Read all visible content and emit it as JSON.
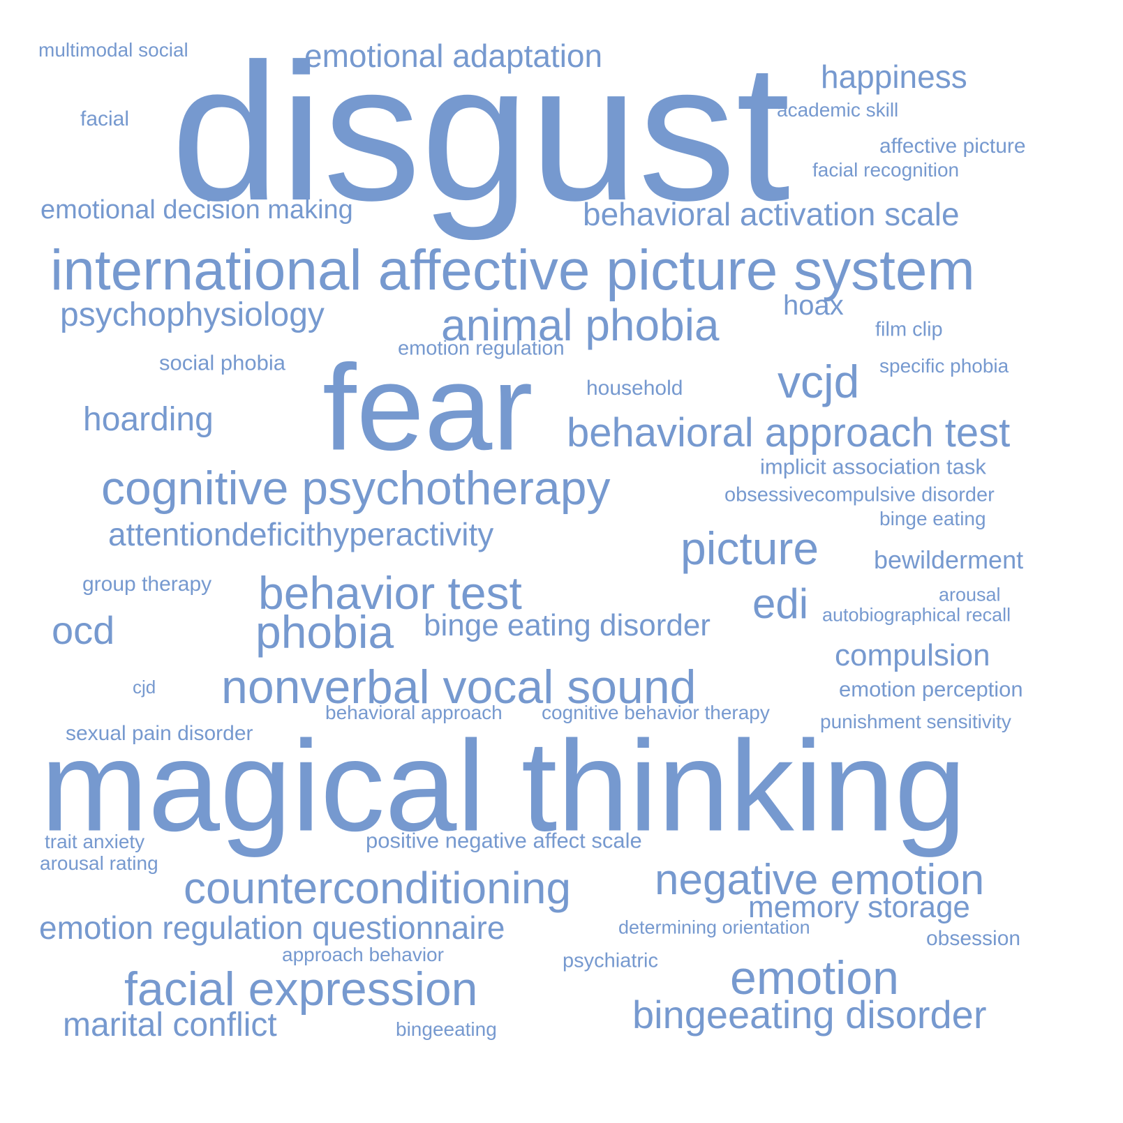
{
  "style": {
    "word_color": "#7699cf",
    "background": "#ffffff"
  },
  "words": [
    {
      "text": "disgust",
      "weight": 100
    },
    {
      "text": "magical thinking",
      "weight": 78
    },
    {
      "text": "fear",
      "weight": 82
    },
    {
      "text": "international affective picture system",
      "weight": 42
    },
    {
      "text": "cognitive psychotherapy",
      "weight": 38
    },
    {
      "text": "nonverbal vocal sound",
      "weight": 38
    },
    {
      "text": "animal phobia",
      "weight": 36
    },
    {
      "text": "facial expression",
      "weight": 38
    },
    {
      "text": "counterconditioning",
      "weight": 36
    },
    {
      "text": "negative emotion",
      "weight": 36
    },
    {
      "text": "emotion",
      "weight": 40
    },
    {
      "text": "bingeeating disorder",
      "weight": 33
    },
    {
      "text": "behavioral approach test",
      "weight": 33
    },
    {
      "text": "behavior test",
      "weight": 36
    },
    {
      "text": "phobia",
      "weight": 36
    },
    {
      "text": "vcjd",
      "weight": 36
    },
    {
      "text": "picture",
      "weight": 36
    },
    {
      "text": "edi",
      "weight": 34
    },
    {
      "text": "ocd",
      "weight": 30
    },
    {
      "text": "emotional adaptation",
      "weight": 28
    },
    {
      "text": "happiness",
      "weight": 28
    },
    {
      "text": "behavioral activation scale",
      "weight": 28
    },
    {
      "text": "psychophysiology",
      "weight": 28
    },
    {
      "text": "hoarding",
      "weight": 28
    },
    {
      "text": "attentiondeficithyperactivity",
      "weight": 28
    },
    {
      "text": "binge eating disorder",
      "weight": 27
    },
    {
      "text": "compulsion",
      "weight": 27
    },
    {
      "text": "emotion regulation questionnaire",
      "weight": 28
    },
    {
      "text": "memory storage",
      "weight": 27
    },
    {
      "text": "marital conflict",
      "weight": 28
    },
    {
      "text": "emotional decision making",
      "weight": 25
    },
    {
      "text": "hoax",
      "weight": 25
    },
    {
      "text": "bewilderment",
      "weight": 23
    },
    {
      "text": "multimodal social",
      "weight": 18
    },
    {
      "text": "facial",
      "weight": 18
    },
    {
      "text": "academic skill",
      "weight": 18
    },
    {
      "text": "affective picture",
      "weight": 19
    },
    {
      "text": "facial recognition",
      "weight": 18
    },
    {
      "text": "film clip",
      "weight": 18
    },
    {
      "text": "emotion regulation",
      "weight": 18
    },
    {
      "text": "social phobia",
      "weight": 19
    },
    {
      "text": "specific phobia",
      "weight": 18
    },
    {
      "text": "household",
      "weight": 19
    },
    {
      "text": "implicit association task",
      "weight": 19
    },
    {
      "text": "obsessivecompulsive disorder",
      "weight": 19
    },
    {
      "text": "binge eating",
      "weight": 18
    },
    {
      "text": "group therapy",
      "weight": 19
    },
    {
      "text": "arousal",
      "weight": 17
    },
    {
      "text": "autobiographical recall",
      "weight": 17
    },
    {
      "text": "cjd",
      "weight": 17
    },
    {
      "text": "emotion perception",
      "weight": 19
    },
    {
      "text": "behavioral approach",
      "weight": 18
    },
    {
      "text": "cognitive behavior therapy",
      "weight": 18
    },
    {
      "text": "punishment sensitivity",
      "weight": 18
    },
    {
      "text": "sexual pain disorder",
      "weight": 19
    },
    {
      "text": "trait anxiety",
      "weight": 18
    },
    {
      "text": "positive negative affect scale",
      "weight": 19
    },
    {
      "text": "arousal rating",
      "weight": 18
    },
    {
      "text": "determining orientation",
      "weight": 17
    },
    {
      "text": "obsession",
      "weight": 19
    },
    {
      "text": "approach behavior",
      "weight": 18
    },
    {
      "text": "psychiatric",
      "weight": 18
    },
    {
      "text": "bingeeating",
      "weight": 17
    }
  ]
}
